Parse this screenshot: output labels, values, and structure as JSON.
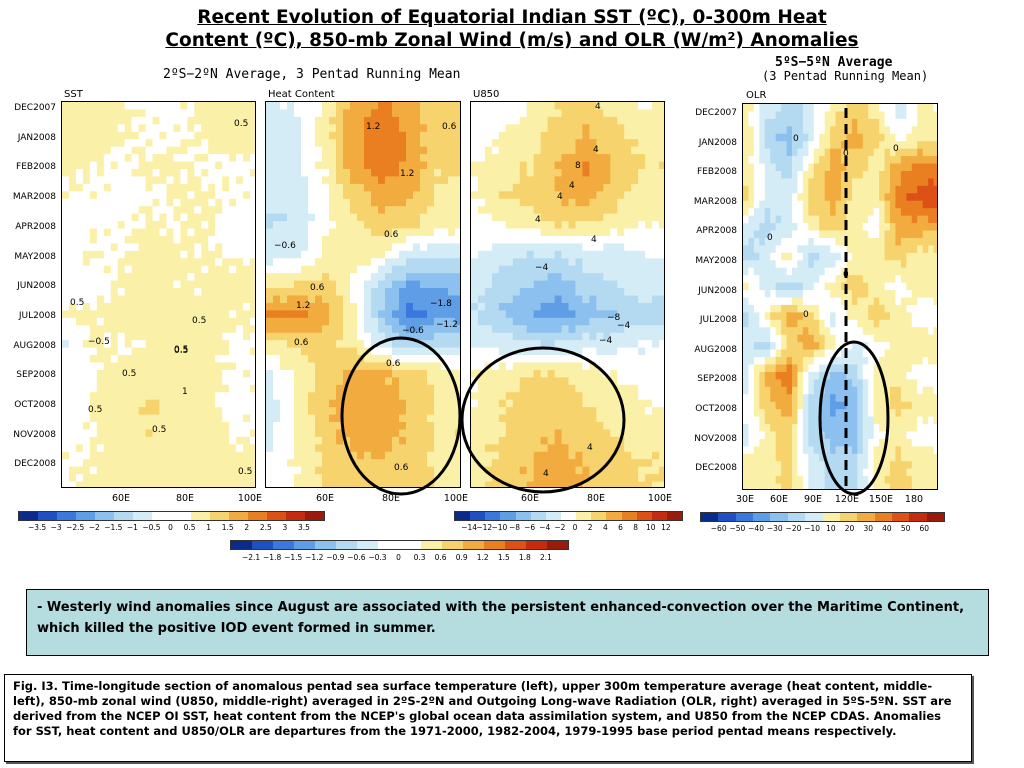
{
  "title_line1": "Recent Evolution of Equatorial Indian SST (ºC), 0-300m Heat",
  "title_line2": "Content (ºC), 850-mb Zonal Wind (m/s) and OLR (W/m²) Anomalies",
  "subtitle_left": "2ºS−2ºN Average, 3 Pentad Running Mean",
  "subtitle_right_1": "5ºS−5ºN Average",
  "subtitle_right_2": "(3 Pentad Running Mean)",
  "panel_labels": {
    "sst": "SST",
    "hc": "Heat Content",
    "u850": "U850",
    "olr": "OLR"
  },
  "months": [
    "DEC2007",
    "JAN2008",
    "FEB2008",
    "MAR2008",
    "APR2008",
    "MAY2008",
    "JUN2008",
    "JUL2008",
    "AUG2008",
    "SEP2008",
    "OCT2008",
    "NOV2008",
    "DEC2008"
  ],
  "xticks_left": [
    "60E",
    "80E",
    "100E"
  ],
  "xticks_olr": [
    "30E",
    "60E",
    "90E",
    "120E",
    "150E",
    "180"
  ],
  "colorbars": {
    "sst": {
      "labels": [
        "−3.5",
        "−3",
        "−2.5",
        "−2",
        "−1.5",
        "−1",
        "−0.5",
        "0",
        "0.5",
        "1",
        "1.5",
        "2",
        "2.5",
        "3",
        "3.5"
      ]
    },
    "u850": {
      "labels": [
        "−14",
        "−12",
        "−10",
        "−8",
        "−6",
        "−4",
        "−2",
        "0",
        "2",
        "4",
        "6",
        "8",
        "10",
        "12"
      ]
    },
    "hc": {
      "labels": [
        "−2.1",
        "−1.8",
        "−1.5",
        "−1.2",
        "−0.9",
        "−0.6",
        "−0.3",
        "0",
        "0.3",
        "0.6",
        "0.9",
        "1.2",
        "1.5",
        "1.8",
        "2.1"
      ]
    },
    "olr": {
      "labels": [
        "−60",
        "−50",
        "−40",
        "−30",
        "−20",
        "−10",
        "10",
        "20",
        "30",
        "40",
        "50",
        "60"
      ]
    }
  },
  "colors": {
    "neg": [
      "#0a2a8c",
      "#1f4fc4",
      "#3a78dd",
      "#5f9ee6",
      "#8cc0ee",
      "#b4daf2",
      "#d4ecf6"
    ],
    "neutral": "#ffffff",
    "pos": [
      "#fbf0a8",
      "#f6d36c",
      "#f2ab3e",
      "#ea7f22",
      "#dd5116",
      "#c42b10",
      "#9a1b0c"
    ]
  },
  "contour_labels": {
    "sst": [
      "0.5",
      "0.5",
      "0.5",
      "0.5",
      "−0.5",
      "0.5",
      "0.5",
      "1",
      "0.5",
      "0.5",
      "0.5"
    ],
    "hc": [
      "1.2",
      "0.6",
      "1.2",
      "−0.6",
      "0.6",
      "0.6",
      "1.2",
      "−1.8",
      "−1.2",
      "−0.6",
      "0.6",
      "0.6",
      "0.6"
    ],
    "u850": [
      "4",
      "4",
      "8",
      "4",
      "4",
      "4",
      "4",
      "−4",
      "−8",
      "−4",
      "−4",
      "4",
      "4"
    ],
    "olr": [
      "0",
      "0",
      "0",
      "0",
      "0",
      "0"
    ]
  },
  "note_text": "- Westerly wind anomalies since August are associated with the persistent enhanced-convection over the Maritime Continent, which killed the positive IOD event formed in summer.",
  "caption_text": "Fig. I3. Time-longitude section of anomalous pentad sea surface temperature (left), upper 300m temperature average (heat content, middle-left), 850-mb zonal wind (U850, middle-right) averaged in 2ºS-2ºN and Outgoing Long-wave Radiation (OLR, right) averaged in 5ºS-5ºN. SST are derived from the NCEP OI SST, heat content from the NCEP's global ocean data assimilation system, and U850 from the NCEP CDAS.  Anomalies for SST, heat content and U850/OLR are departures from the 1971-2000, 1982-2004, 1979-1995 base period pentad means respectively.",
  "chart_data": [
    {
      "type": "heatmap",
      "title": "SST",
      "xlabel": "",
      "ylabel": "",
      "x_ticks": [
        "60E",
        "80E",
        "100E"
      ],
      "y_ticks": [
        "DEC2007",
        "JAN2008",
        "FEB2008",
        "MAR2008",
        "APR2008",
        "MAY2008",
        "JUN2008",
        "JUL2008",
        "AUG2008",
        "SEP2008",
        "OCT2008",
        "NOV2008",
        "DEC2008"
      ],
      "colorbar": [
        -3.5,
        -3,
        -2.5,
        -2,
        -1.5,
        -1,
        -0.5,
        0,
        0.5,
        1,
        1.5,
        2,
        2.5,
        3,
        3.5
      ],
      "rows": [
        [
          0.3,
          0.4,
          0.3,
          0.2,
          0.1,
          0.4,
          0.6
        ],
        [
          0.4,
          0.4,
          0.3,
          0.2,
          0.2,
          0.3,
          0.4
        ],
        [
          0.4,
          0.3,
          0.2,
          0.3,
          0.3,
          0.2,
          0.2
        ],
        [
          0.2,
          0.2,
          0.1,
          0.2,
          0.3,
          0.3,
          0.2
        ],
        [
          -0.1,
          0.2,
          0.2,
          0.3,
          0.2,
          0.3,
          0.1
        ],
        [
          0.1,
          0.3,
          0.2,
          0.4,
          0.3,
          0.3,
          0.2
        ],
        [
          -0.2,
          0.1,
          0.3,
          0.4,
          0.3,
          0.3,
          0.4
        ],
        [
          0.3,
          0.3,
          0.4,
          0.5,
          0.4,
          0.4,
          0.3
        ],
        [
          -0.2,
          0.3,
          0.2,
          0.3,
          0.6,
          0.4,
          0.2
        ],
        [
          0.1,
          0.2,
          0.4,
          0.3,
          0.5,
          0.4,
          0.2
        ],
        [
          -0.1,
          0.3,
          0.6,
          0.8,
          0.5,
          0.3,
          0.2
        ],
        [
          0.1,
          0.2,
          0.5,
          0.7,
          0.6,
          0.4,
          0.2
        ],
        [
          0.2,
          0.3,
          0.4,
          0.5,
          0.6,
          0.5,
          0.4
        ]
      ]
    },
    {
      "type": "heatmap",
      "title": "Heat Content",
      "xlabel": "",
      "ylabel": "",
      "x_ticks": [
        "60E",
        "80E",
        "100E"
      ],
      "y_ticks": [
        "DEC2007",
        "JAN2008",
        "FEB2008",
        "MAR2008",
        "APR2008",
        "MAY2008",
        "JUN2008",
        "JUL2008",
        "AUG2008",
        "SEP2008",
        "OCT2008",
        "NOV2008",
        "DEC2008"
      ],
      "colorbar": [
        -2.1,
        -1.8,
        -1.5,
        -1.2,
        -0.9,
        -0.6,
        -0.3,
        0,
        0.3,
        0.6,
        0.9,
        1.2,
        1.5,
        1.8,
        2.1
      ],
      "rows": [
        [
          -0.2,
          -0.1,
          0.2,
          0.9,
          1.1,
          0.9,
          0.5
        ],
        [
          -0.3,
          -0.2,
          0.3,
          1.0,
          1.2,
          1.0,
          0.5
        ],
        [
          -0.3,
          -0.2,
          0.2,
          0.9,
          1.3,
          1.0,
          0.5
        ],
        [
          -0.4,
          -0.3,
          0.1,
          0.6,
          0.9,
          0.8,
          0.4
        ],
        [
          -0.5,
          -0.4,
          0.1,
          0.4,
          0.6,
          0.5,
          0.3
        ],
        [
          -0.3,
          -0.2,
          0.2,
          0.4,
          0.2,
          -0.3,
          -0.4
        ],
        [
          0.3,
          0.5,
          0.6,
          0.1,
          -0.6,
          -1.1,
          -1.0
        ],
        [
          1.2,
          1.1,
          0.9,
          0.2,
          -0.8,
          -1.5,
          -1.2
        ],
        [
          0.4,
          0.5,
          0.6,
          0.3,
          -0.3,
          -0.7,
          -0.6
        ],
        [
          -0.2,
          0.2,
          0.6,
          0.8,
          0.8,
          0.6,
          0.4
        ],
        [
          -0.3,
          0.2,
          0.7,
          1.0,
          1.0,
          0.7,
          0.4
        ],
        [
          -0.2,
          0.2,
          0.6,
          0.9,
          0.9,
          0.7,
          0.4
        ],
        [
          -0.1,
          0.2,
          0.5,
          0.7,
          0.7,
          0.6,
          0.4
        ]
      ]
    },
    {
      "type": "heatmap",
      "title": "U850",
      "xlabel": "",
      "ylabel": "",
      "x_ticks": [
        "60E",
        "80E",
        "100E"
      ],
      "y_ticks": [
        "DEC2007",
        "JAN2008",
        "FEB2008",
        "MAR2008",
        "APR2008",
        "MAY2008",
        "JUN2008",
        "JUL2008",
        "AUG2008",
        "SEP2008",
        "OCT2008",
        "NOV2008",
        "DEC2008"
      ],
      "colorbar": [
        -14,
        -12,
        -10,
        -8,
        -6,
        -4,
        -2,
        0,
        2,
        4,
        6,
        8,
        10,
        12
      ],
      "rows": [
        [
          -1,
          0,
          1,
          3,
          4,
          2,
          1
        ],
        [
          0,
          1,
          2,
          4,
          5,
          4,
          2
        ],
        [
          1,
          2,
          3,
          5,
          7,
          5,
          3
        ],
        [
          1,
          3,
          4,
          5,
          6,
          4,
          2
        ],
        [
          0,
          1,
          2,
          3,
          3,
          2,
          1
        ],
        [
          -1,
          -2,
          -3,
          -3,
          -2,
          -2,
          -1
        ],
        [
          -2,
          -4,
          -5,
          -6,
          -4,
          -3,
          -2
        ],
        [
          -3,
          -5,
          -7,
          -8,
          -6,
          -5,
          -4
        ],
        [
          -1,
          -2,
          -3,
          -3,
          -2,
          -2,
          -1
        ],
        [
          1,
          2,
          3,
          3,
          2,
          1,
          0
        ],
        [
          1,
          3,
          4,
          4,
          3,
          2,
          1
        ],
        [
          2,
          3,
          4,
          5,
          4,
          3,
          2
        ],
        [
          2,
          4,
          5,
          6,
          5,
          4,
          3
        ]
      ]
    },
    {
      "type": "heatmap",
      "title": "OLR",
      "xlabel": "",
      "ylabel": "",
      "x_ticks": [
        "30E",
        "60E",
        "90E",
        "120E",
        "150E",
        "180"
      ],
      "y_ticks": [
        "DEC2007",
        "JAN2008",
        "FEB2008",
        "MAR2008",
        "APR2008",
        "MAY2008",
        "JUN2008",
        "JUL2008",
        "AUG2008",
        "SEP2008",
        "OCT2008",
        "NOV2008",
        "DEC2008"
      ],
      "colorbar": [
        -60,
        -50,
        -40,
        -30,
        -20,
        -10,
        10,
        20,
        30,
        40,
        50,
        60
      ],
      "rows": [
        [
          10,
          -10,
          -20,
          -10,
          10,
          20,
          10,
          -10,
          5
        ],
        [
          15,
          -20,
          -30,
          -10,
          20,
          30,
          20,
          0,
          10
        ],
        [
          10,
          -10,
          -20,
          10,
          30,
          20,
          10,
          30,
          40
        ],
        [
          20,
          -10,
          -10,
          20,
          30,
          10,
          10,
          40,
          50
        ],
        [
          -10,
          -20,
          -10,
          10,
          20,
          10,
          0,
          30,
          30
        ],
        [
          -20,
          -10,
          10,
          -20,
          -10,
          10,
          10,
          20,
          10
        ],
        [
          10,
          -10,
          -20,
          -10,
          10,
          20,
          10,
          0,
          10
        ],
        [
          -20,
          10,
          30,
          20,
          -10,
          10,
          20,
          10,
          0
        ],
        [
          -10,
          -20,
          20,
          30,
          10,
          -10,
          0,
          10,
          10
        ],
        [
          -10,
          30,
          40,
          -10,
          -30,
          -20,
          10,
          10,
          0
        ],
        [
          0,
          20,
          30,
          -20,
          -40,
          -30,
          10,
          20,
          10
        ],
        [
          -10,
          10,
          20,
          -20,
          -30,
          -30,
          0,
          10,
          0
        ],
        [
          10,
          10,
          20,
          -10,
          -20,
          -20,
          10,
          20,
          10
        ]
      ]
    }
  ]
}
